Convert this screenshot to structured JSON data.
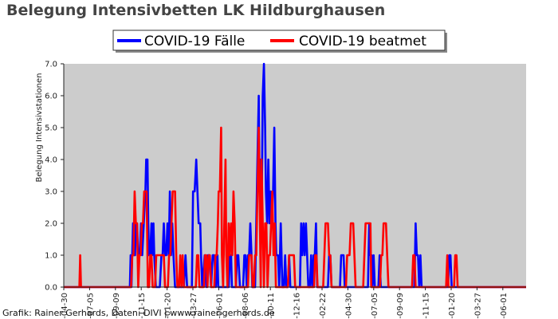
{
  "title": "Belegung Intensivbetten LK Hildburghausen",
  "footer": "Grafik: Rainer Gerhards, Daten: DIVI | www.rainer-gerhards.de",
  "colors": {
    "plot_background": "#cccccc",
    "series_faelle": "#0000ff",
    "series_beatmet": "#ff0000",
    "title_text": "#444444"
  },
  "chart_data": {
    "type": "line",
    "title": "Belegung Intensivbetten LK Hildburghausen",
    "xlabel": "",
    "ylabel": "Belegung Intensivstationen",
    "ylim": [
      0,
      7
    ],
    "y_ticks": [
      0,
      1,
      2,
      3,
      4,
      5,
      6,
      7
    ],
    "y_tick_labels": [
      "0.0",
      "1.0",
      "2.0",
      "3.0",
      "4.0",
      "5.0",
      "6.0",
      "7.0"
    ],
    "x_tick_labels": [
      "-04-30",
      "-07-05",
      "-09-09",
      "-11-15",
      "-01-20",
      "-03-27",
      "-06-01",
      "-08-06",
      "-10-11",
      "-12-16",
      "-02-22",
      "-04-30",
      "-07-05",
      "-09-09",
      "-11-15",
      "-01-20",
      "-03-27",
      "-06-01"
    ],
    "x_unit": "days",
    "xlim": [
      0,
      1155
    ],
    "legend_position": "top-center",
    "grid": false,
    "series": [
      {
        "name": "COVID-19 Fälle",
        "color": "#0000ff",
        "points": [
          [
            0,
            0
          ],
          [
            165,
            0
          ],
          [
            167,
            1
          ],
          [
            169,
            0
          ],
          [
            171,
            1
          ],
          [
            173,
            2
          ],
          [
            175,
            1
          ],
          [
            178,
            1
          ],
          [
            180,
            2
          ],
          [
            183,
            2
          ],
          [
            186,
            1
          ],
          [
            190,
            1
          ],
          [
            193,
            2
          ],
          [
            196,
            1
          ],
          [
            200,
            2
          ],
          [
            204,
            3
          ],
          [
            206,
            4
          ],
          [
            209,
            4
          ],
          [
            211,
            2
          ],
          [
            213,
            1
          ],
          [
            216,
            1
          ],
          [
            219,
            2
          ],
          [
            221,
            1
          ],
          [
            224,
            2
          ],
          [
            226,
            1
          ],
          [
            230,
            0
          ],
          [
            240,
            0
          ],
          [
            244,
            1
          ],
          [
            247,
            1
          ],
          [
            250,
            2
          ],
          [
            253,
            1
          ],
          [
            256,
            1
          ],
          [
            259,
            2
          ],
          [
            262,
            1
          ],
          [
            265,
            3
          ],
          [
            268,
            1
          ],
          [
            271,
            2
          ],
          [
            274,
            1
          ],
          [
            278,
            0
          ],
          [
            300,
            0
          ],
          [
            304,
            1
          ],
          [
            308,
            0
          ],
          [
            320,
            0
          ],
          [
            323,
            3
          ],
          [
            327,
            3
          ],
          [
            331,
            4
          ],
          [
            334,
            3
          ],
          [
            337,
            2
          ],
          [
            341,
            2
          ],
          [
            343,
            1
          ],
          [
            346,
            0
          ],
          [
            352,
            1
          ],
          [
            356,
            0
          ],
          [
            360,
            1
          ],
          [
            364,
            1
          ],
          [
            368,
            0
          ],
          [
            372,
            1
          ],
          [
            376,
            1
          ],
          [
            380,
            0
          ],
          [
            384,
            1
          ],
          [
            386,
            0
          ],
          [
            412,
            0
          ],
          [
            415,
            1
          ],
          [
            418,
            1
          ],
          [
            420,
            0
          ],
          [
            430,
            0
          ],
          [
            433,
            1
          ],
          [
            436,
            1
          ],
          [
            440,
            0
          ],
          [
            448,
            0
          ],
          [
            451,
            1
          ],
          [
            454,
            1
          ],
          [
            457,
            0
          ],
          [
            460,
            1
          ],
          [
            463,
            1
          ],
          [
            466,
            2
          ],
          [
            469,
            1
          ],
          [
            471,
            0
          ],
          [
            478,
            0
          ],
          [
            481,
            2
          ],
          [
            484,
            4
          ],
          [
            487,
            6
          ],
          [
            489,
            3
          ],
          [
            492,
            4
          ],
          [
            494,
            2
          ],
          [
            497,
            6
          ],
          [
            500,
            7
          ],
          [
            503,
            5
          ],
          [
            505,
            3
          ],
          [
            508,
            2
          ],
          [
            511,
            4
          ],
          [
            514,
            2
          ],
          [
            517,
            3
          ],
          [
            520,
            2
          ],
          [
            523,
            3
          ],
          [
            526,
            5
          ],
          [
            529,
            2
          ],
          [
            531,
            1
          ],
          [
            535,
            1
          ],
          [
            538,
            0
          ],
          [
            542,
            2
          ],
          [
            546,
            0
          ],
          [
            550,
            0
          ],
          [
            553,
            1
          ],
          [
            556,
            0
          ],
          [
            560,
            0
          ],
          [
            563,
            1
          ],
          [
            566,
            0
          ],
          [
            590,
            0
          ],
          [
            593,
            2
          ],
          [
            596,
            1
          ],
          [
            599,
            2
          ],
          [
            602,
            1
          ],
          [
            605,
            2
          ],
          [
            608,
            1
          ],
          [
            611,
            0
          ],
          [
            615,
            0
          ],
          [
            618,
            1
          ],
          [
            621,
            0
          ],
          [
            624,
            1
          ],
          [
            627,
            1
          ],
          [
            630,
            2
          ],
          [
            633,
            0
          ],
          [
            660,
            0
          ],
          [
            663,
            1
          ],
          [
            666,
            1
          ],
          [
            669,
            0
          ],
          [
            690,
            0
          ],
          [
            693,
            1
          ],
          [
            696,
            1
          ],
          [
            699,
            1
          ],
          [
            702,
            0
          ],
          [
            760,
            0
          ],
          [
            763,
            2
          ],
          [
            766,
            1
          ],
          [
            769,
            1
          ],
          [
            771,
            0
          ],
          [
            774,
            1
          ],
          [
            777,
            0
          ],
          [
            786,
            0
          ],
          [
            789,
            1
          ],
          [
            792,
            0
          ],
          [
            876,
            0
          ],
          [
            879,
            2
          ],
          [
            882,
            1
          ],
          [
            885,
            1
          ],
          [
            888,
            0
          ],
          [
            891,
            1
          ],
          [
            894,
            0
          ],
          [
            960,
            0
          ],
          [
            963,
            1
          ],
          [
            966,
            1
          ],
          [
            969,
            0
          ],
          [
            1155,
            0
          ]
        ]
      },
      {
        "name": "COVID-19 beatmet",
        "color": "#ff0000",
        "points": [
          [
            0,
            0
          ],
          [
            39,
            0
          ],
          [
            41,
            1
          ],
          [
            43,
            0
          ],
          [
            162,
            0
          ],
          [
            168,
            0
          ],
          [
            171,
            1
          ],
          [
            174,
            1
          ],
          [
            177,
            3
          ],
          [
            180,
            2
          ],
          [
            183,
            2
          ],
          [
            186,
            0
          ],
          [
            189,
            1
          ],
          [
            192,
            1
          ],
          [
            195,
            2
          ],
          [
            198,
            2
          ],
          [
            201,
            3
          ],
          [
            204,
            3
          ],
          [
            207,
            3
          ],
          [
            210,
            0
          ],
          [
            213,
            0
          ],
          [
            216,
            1
          ],
          [
            219,
            1
          ],
          [
            222,
            0
          ],
          [
            228,
            0
          ],
          [
            231,
            1
          ],
          [
            234,
            1
          ],
          [
            237,
            1
          ],
          [
            240,
            1
          ],
          [
            243,
            1
          ],
          [
            246,
            1
          ],
          [
            250,
            1
          ],
          [
            253,
            0
          ],
          [
            260,
            0
          ],
          [
            263,
            1
          ],
          [
            266,
            1
          ],
          [
            269,
            2
          ],
          [
            272,
            3
          ],
          [
            275,
            3
          ],
          [
            278,
            3
          ],
          [
            281,
            1
          ],
          [
            284,
            0
          ],
          [
            288,
            0
          ],
          [
            291,
            1
          ],
          [
            294,
            0
          ],
          [
            297,
            1
          ],
          [
            300,
            0
          ],
          [
            303,
            0
          ],
          [
            330,
            0
          ],
          [
            333,
            1
          ],
          [
            336,
            1
          ],
          [
            339,
            0
          ],
          [
            350,
            0
          ],
          [
            353,
            1
          ],
          [
            356,
            1
          ],
          [
            359,
            0
          ],
          [
            362,
            1
          ],
          [
            365,
            1
          ],
          [
            368,
            0
          ],
          [
            376,
            0
          ],
          [
            379,
            1
          ],
          [
            382,
            1
          ],
          [
            385,
            2
          ],
          [
            387,
            3
          ],
          [
            390,
            3
          ],
          [
            393,
            5
          ],
          [
            395,
            1
          ],
          [
            398,
            0
          ],
          [
            401,
            2
          ],
          [
            404,
            4
          ],
          [
            406,
            1
          ],
          [
            409,
            0
          ],
          [
            412,
            2
          ],
          [
            415,
            1
          ],
          [
            418,
            2
          ],
          [
            421,
            1
          ],
          [
            424,
            3
          ],
          [
            427,
            2
          ],
          [
            430,
            0
          ],
          [
            460,
            0
          ],
          [
            463,
            1
          ],
          [
            466,
            1
          ],
          [
            469,
            1
          ],
          [
            472,
            0
          ],
          [
            475,
            0
          ],
          [
            478,
            1
          ],
          [
            481,
            1
          ],
          [
            484,
            3
          ],
          [
            487,
            5
          ],
          [
            489,
            3
          ],
          [
            492,
            0
          ],
          [
            494,
            4
          ],
          [
            497,
            2
          ],
          [
            500,
            0
          ],
          [
            503,
            2
          ],
          [
            506,
            2
          ],
          [
            509,
            0
          ],
          [
            512,
            1
          ],
          [
            515,
            1
          ],
          [
            518,
            2
          ],
          [
            521,
            3
          ],
          [
            524,
            1
          ],
          [
            527,
            2
          ],
          [
            530,
            0
          ],
          [
            560,
            0
          ],
          [
            563,
            1
          ],
          [
            566,
            1
          ],
          [
            569,
            1
          ],
          [
            572,
            1
          ],
          [
            575,
            1
          ],
          [
            578,
            0
          ],
          [
            625,
            0
          ],
          [
            628,
            1
          ],
          [
            631,
            1
          ],
          [
            634,
            0
          ],
          [
            648,
            0
          ],
          [
            651,
            1
          ],
          [
            654,
            2
          ],
          [
            657,
            2
          ],
          [
            660,
            2
          ],
          [
            663,
            1
          ],
          [
            666,
            1
          ],
          [
            669,
            0
          ],
          [
            705,
            0
          ],
          [
            708,
            1
          ],
          [
            711,
            1
          ],
          [
            714,
            1
          ],
          [
            717,
            2
          ],
          [
            720,
            2
          ],
          [
            723,
            2
          ],
          [
            726,
            1
          ],
          [
            729,
            0
          ],
          [
            748,
            0
          ],
          [
            751,
            1
          ],
          [
            754,
            2
          ],
          [
            757,
            2
          ],
          [
            760,
            2
          ],
          [
            763,
            2
          ],
          [
            766,
            2
          ],
          [
            768,
            0
          ],
          [
            790,
            0
          ],
          [
            793,
            1
          ],
          [
            796,
            1
          ],
          [
            799,
            2
          ],
          [
            802,
            2
          ],
          [
            805,
            2
          ],
          [
            808,
            1
          ],
          [
            811,
            0
          ],
          [
            870,
            0
          ],
          [
            873,
            1
          ],
          [
            876,
            1
          ],
          [
            879,
            0
          ],
          [
            955,
            0
          ],
          [
            958,
            1
          ],
          [
            961,
            0
          ],
          [
            975,
            0
          ],
          [
            978,
            1
          ],
          [
            981,
            1
          ],
          [
            984,
            0
          ],
          [
            1155,
            0
          ]
        ]
      }
    ]
  }
}
